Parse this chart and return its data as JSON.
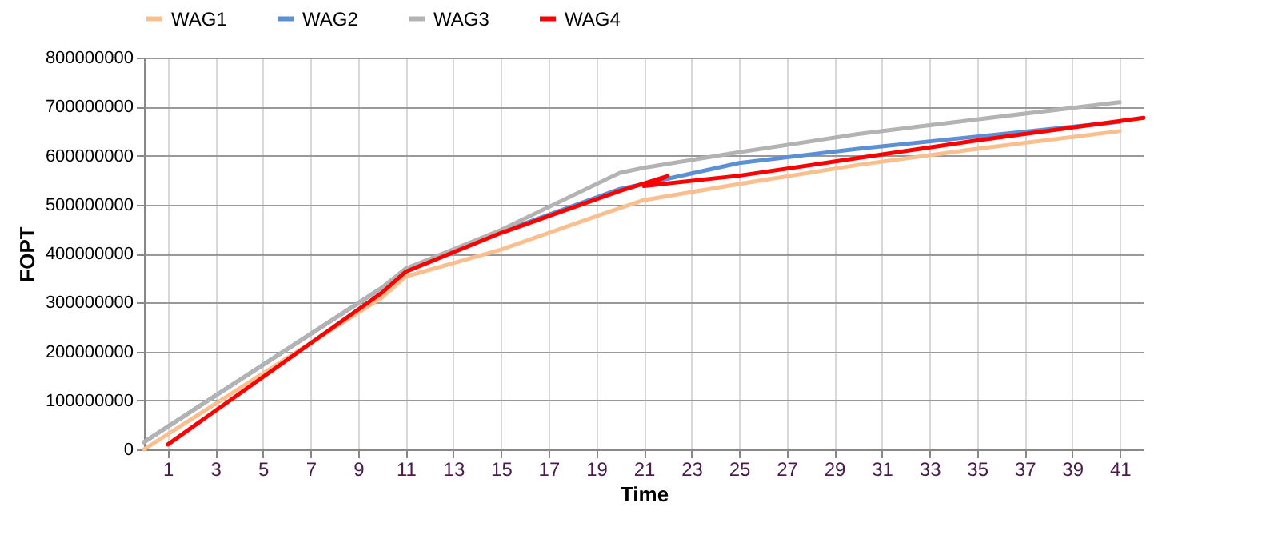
{
  "chart_data": {
    "type": "line",
    "xlabel": "Time",
    "ylabel": "FOPT",
    "x": [
      0,
      10,
      11,
      15,
      20,
      21,
      25,
      30,
      35,
      41
    ],
    "series": [
      {
        "name": "WAG1",
        "color": "#f9bf8f",
        "values": [
          0,
          310000000,
          353000000,
          408000000,
          493000000,
          509000000,
          542000000,
          581000000,
          614000000,
          650000000
        ]
      },
      {
        "name": "WAG2",
        "color": "#5b8fd6",
        "values": [
          15000000,
          330000000,
          369000000,
          444000000,
          532000000,
          542000000,
          585000000,
          614000000,
          639000000,
          669000000
        ]
      },
      {
        "name": "WAG3",
        "color": "#b3b3b3",
        "values": [
          15000000,
          330000000,
          369000000,
          448000000,
          565000000,
          575000000,
          607000000,
          644000000,
          674000000,
          709000000
        ]
      },
      {
        "name": "WAG4",
        "color": "#ff0000",
        "x": [
          1,
          10,
          11,
          15,
          20,
          22,
          21,
          25,
          30,
          35,
          42
        ],
        "values": [
          10000000,
          320000000,
          363000000,
          442000000,
          528000000,
          558000000,
          538000000,
          559000000,
          595000000,
          631000000,
          677000000
        ]
      }
    ],
    "xlim": [
      0,
      42
    ],
    "xticks": [
      1,
      3,
      5,
      7,
      9,
      11,
      13,
      15,
      17,
      19,
      21,
      23,
      25,
      27,
      29,
      31,
      33,
      35,
      37,
      39,
      41
    ],
    "ylim": [
      0,
      800000000
    ],
    "yticks": [
      0,
      100000000,
      200000000,
      300000000,
      400000000,
      500000000,
      600000000,
      700000000,
      800000000
    ],
    "grid": true,
    "legend": "top",
    "line_style": "solid"
  }
}
